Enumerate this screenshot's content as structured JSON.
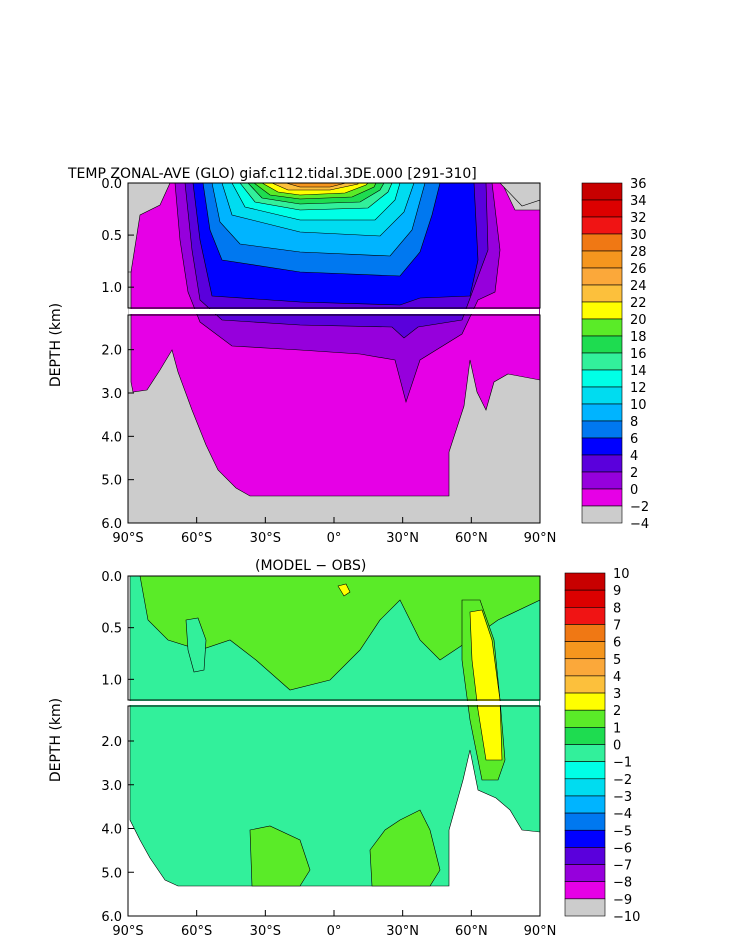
{
  "chart_data": [
    {
      "type": "heatmap",
      "title": "TEMP ZONAL-AVE (GLO) giaf.c112.tidal.3DE.000 [291-310]",
      "ylabel": "DEPTH (km)",
      "x_ticks": [
        "90°S",
        "60°S",
        "30°S",
        "0°",
        "30°N",
        "60°N",
        "90°N"
      ],
      "y_ticks": [
        "0.0",
        "0.5",
        "1.0",
        "2.0",
        "3.0",
        "4.0",
        "5.0",
        "6.0"
      ],
      "xlim": [
        -90,
        90
      ],
      "ylim": [
        0,
        6
      ],
      "y_break_km": 1.2,
      "colorbar_levels": [
        "36",
        "34",
        "32",
        "30",
        "28",
        "26",
        "24",
        "22",
        "20",
        "18",
        "16",
        "14",
        "12",
        "10",
        "8",
        "6",
        "4",
        "2",
        "0",
        "−2",
        "−4"
      ],
      "colorbar_colors": [
        "#c80000",
        "#dc0000",
        "#f01414",
        "#f07814",
        "#f5961e",
        "#fba83a",
        "#fcc03c",
        "#ffff00",
        "#5aeb28",
        "#1edc50",
        "#32f09b",
        "#00ffe6",
        "#00dcf0",
        "#00b4ff",
        "#0078f0",
        "#0000ff",
        "#5a00dc",
        "#9600dc",
        "#e600e6",
        "#cccccc",
        "#6e6e6e"
      ]
    },
    {
      "type": "heatmap",
      "title": "(MODEL − OBS)",
      "ylabel": "DEPTH (km)",
      "x_ticks": [
        "90°S",
        "60°S",
        "30°S",
        "0°",
        "30°N",
        "60°N",
        "90°N"
      ],
      "y_ticks": [
        "0.0",
        "0.5",
        "1.0",
        "2.0",
        "3.0",
        "4.0",
        "5.0",
        "6.0"
      ],
      "xlim": [
        -90,
        90
      ],
      "ylim": [
        0,
        6
      ],
      "y_break_km": 1.2,
      "colorbar_levels": [
        "10",
        "9",
        "8",
        "7",
        "6",
        "5",
        "4",
        "3",
        "2",
        "1",
        "0",
        "−1",
        "−2",
        "−3",
        "−4",
        "−5",
        "−6",
        "−7",
        "−8",
        "−9",
        "−10"
      ],
      "colorbar_colors": [
        "#c80000",
        "#dc0000",
        "#f01414",
        "#f07814",
        "#f5961e",
        "#fba83a",
        "#fcc03c",
        "#ffff00",
        "#5aeb28",
        "#1edc50",
        "#32f09b",
        "#00ffe6",
        "#00dcf0",
        "#00b4ff",
        "#0078f0",
        "#0000ff",
        "#5a00dc",
        "#9600dc",
        "#e600e6",
        "#cccccc",
        "#6e6e6e"
      ]
    }
  ]
}
